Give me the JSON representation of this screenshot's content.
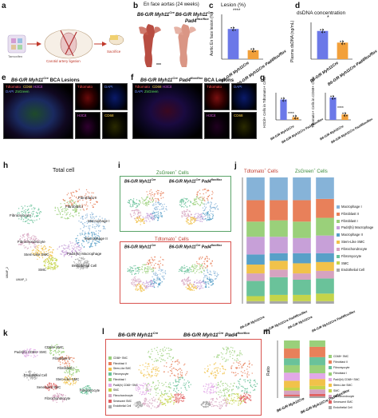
{
  "panels": {
    "a": "a",
    "b": "b",
    "c": "c",
    "d": "d",
    "e": "e",
    "f": "f",
    "g": "g",
    "h": "h",
    "i": "i",
    "j": "j",
    "k": "k",
    "l": "l",
    "m": "m"
  },
  "panel_a": {
    "label_surgery": "Carotid artery ligation",
    "label_step": "Sacrifice",
    "label_left": "Tamoxifen"
  },
  "panel_b": {
    "title": "En face aortas (24 weeks)",
    "group1": "B6-G/R Myh11",
    "group1_sup": "Cre",
    "group2": "B6-G/R Myh11",
    "group2_sup": "Cre",
    "group2_line2": "Pad4",
    "group2_line2_sup": "flox/flox"
  },
  "panel_c": {
    "title": "Lesion (%)",
    "ylabel": "Aortic En face lesion (%)",
    "sig": "****",
    "xticks": [
      "B6-G/R Myh11Cre",
      "B6-G/R Myh11Cre Pad4flox/flox"
    ]
  },
  "panel_d": {
    "title": "dsDNA concentration",
    "ylabel": "Plasma dsDNA (ng/mL)",
    "sig": "*",
    "xticks": [
      "B6-G/R Myh11Cre",
      "B6-G/R Myh11Cre Pad4flox/flox"
    ]
  },
  "panel_e": {
    "title": "B6-G/R Myh11",
    "title_sup": "Cre",
    "title_suffix": "BCA Lesions",
    "main_labels": [
      "Tdtomato",
      "CD68",
      "H3Cit",
      "DAPI",
      "ZsGreen"
    ],
    "tiles": [
      "Tdtomato",
      "DAPI",
      "H3Cit",
      "CD68"
    ]
  },
  "panel_f": {
    "title": "B6-G/R Myh11",
    "title_sup": "Cre",
    "title_mid": "Pad4",
    "title_mid_sup": "flox/flox",
    "title_suffix": "BCA Lesions",
    "main_labels": [
      "Tdtomato",
      "CD68",
      "H3Cit",
      "DAPI",
      "ZsGreen"
    ],
    "tiles": [
      "Tdtomato",
      "DAPI",
      "H3Cit",
      "CD68"
    ]
  },
  "panel_g": {
    "ylabel1": "H3Cit+ Cells in Tdtomato+ Cells",
    "ylabel2": "Tdtomato+ Cells in CD68+ Cells",
    "sig1": "****",
    "sig2": "****",
    "xticks": [
      "B6-G/R Myh11Cre",
      "B6-G/R Myh11Cre Pad4flox/flox"
    ]
  },
  "panel_h": {
    "title": "Total cell",
    "xlabel": "UMAP_1",
    "ylabel": "UMAP_2",
    "clusters": [
      "Fibroblast II",
      "Fibroblast I",
      "Fibromyocyte",
      "Macrophage I",
      "Macrophage II",
      "Fibrochondrocyte",
      "Pad4(hi) Macrophage",
      "Stem-Like SMC",
      "SMC",
      "Endothelial Cell"
    ]
  },
  "panel_i": {
    "title_top": "ZsGreen",
    "title_top_sup": "+",
    "title_top_suffix": " Cells",
    "title_bottom": "Tdtomato",
    "title_bottom_sup": "+",
    "title_bottom_suffix": " Cells",
    "g1": "B6-G/R Myh11",
    "g1_sup": "Cre",
    "g2": "B6-G/R Myh11",
    "g2_sup": "Cre",
    "g2_tail": "Pad4",
    "g2_tail_sup": "flox/flox"
  },
  "panel_j": {
    "title_left": "Tdtomato",
    "title_left_sup": "+",
    "title_left_suffix": " Cells",
    "title_right": "ZsGreen",
    "title_right_sup": "+",
    "title_right_suffix": " Cells",
    "xticks": [
      "B6-G/R Myh11Cre",
      "B6-G/R Myh11Cre Pad4flox/flox",
      "B6-G/R Myh11Cre",
      "B6-G/R Myh11Cre Pad4flox/flox"
    ],
    "legend": [
      "Macrophage I",
      "Fibroblast II",
      "Fibroblast I",
      "Pad4(hi) Macrophage",
      "Macrophage II",
      "Stem-Like SMC",
      "Fibrochondrocyte",
      "Fibromyocyte",
      "SMC",
      "Endothelial Cell"
    ]
  },
  "panel_k": {
    "clusters": [
      "Pad4(hi) CD68+ SMC",
      "CD68+ SMC",
      "Fibroblast II",
      "Fibroblast I",
      "Endothelial Cell",
      "Stem-Like SMC",
      "Senescent SMC",
      "Fibromyocyte",
      "Fibrochondrocyte"
    ]
  },
  "panel_l": {
    "title1": "B6-G/R Myh11",
    "title1_sup": "Cre",
    "title2": "B6-G/R Myh11",
    "title2_sup": "Cre",
    "title2_tail": "Pad4",
    "title2_tail_sup": "flox/flox",
    "legend": [
      "CD68+ SMC",
      "Fibroblast II",
      "Stem-Like SMC",
      "Fibromyocyte",
      "Fibroblast I",
      "Pad4(hi) CD68+ SMC",
      "SMC",
      "Fibrochondrocyte",
      "Senescent SMC",
      "Endothelial Cell"
    ]
  },
  "panel_m": {
    "ylabel": "Ratio",
    "xticks": [
      "B6-G/R Myh11Cre",
      "B6-G/R Myh11Cre Pad4flox/flox"
    ],
    "legend": [
      "CD68+ SMC",
      "Fibroblast II",
      "Fibromyocyte",
      "Fibroblast I",
      "Pad4(hi) CD68+ SMC",
      "Stem-Like SMC",
      "SMC",
      "Fibrochondrocyte",
      "Senescent SMC",
      "Endothelial Cell"
    ]
  },
  "colors": {
    "bar_blue": "#6b78e8",
    "bar_orange": "#f2a03a",
    "red_box": "#d9534f",
    "green_box": "#5aa469"
  },
  "chart_data": [
    {
      "type": "bar",
      "title": "Lesion (%)",
      "ylabel": "Aortic En face lesion (%)",
      "categories": [
        "B6-G/R Myh11Cre",
        "B6-G/R Myh11Cre Pad4flox/flox"
      ],
      "values": [
        27,
        8
      ],
      "ylim": [
        0,
        40
      ]
    },
    {
      "type": "bar",
      "title": "dsDNA concentration",
      "ylabel": "Plasma dsDNA (ng/mL)",
      "categories": [
        "B6-G/R Myh11Cre",
        "B6-G/R Myh11Cre Pad4flox/flox"
      ],
      "values": [
        2300,
        1350
      ],
      "ylim": [
        0,
        3000
      ]
    },
    {
      "type": "bar",
      "ylabel": "H3Cit+ Cells in Tdtomato+ Cells",
      "categories": [
        "B6-G/R Myh11Cre",
        "B6-G/R Myh11Cre Pad4flox/flox"
      ],
      "values": [
        0.3,
        0.04
      ],
      "ylim": [
        0,
        0.4
      ]
    },
    {
      "type": "bar",
      "ylabel": "Tdtomato+ Cells in CD68+ Cells",
      "categories": [
        "B6-G/R Myh11Cre",
        "B6-G/R Myh11Cre Pad4flox/flox"
      ],
      "values": [
        0.33,
        0.08
      ],
      "ylim": [
        0,
        0.4
      ]
    },
    {
      "type": "bar",
      "categories": [
        "B6-G/R Myh11Cre",
        "B6-G/R Myh11Cre Pad4flox/flox",
        "B6-G/R Myh11Cre",
        "B6-G/R Myh11Cre Pad4flox/flox"
      ],
      "series": [
        {
          "name": "Endothelial Cell",
          "values": [
            0.02,
            0.02,
            0.02,
            0.02
          ]
        },
        {
          "name": "SMC",
          "values": [
            0.04,
            0.05,
            0.05,
            0.06
          ]
        },
        {
          "name": "Fibromyocyte",
          "values": [
            0.12,
            0.14,
            0.12,
            0.12
          ]
        },
        {
          "name": "Fibrochondrocyte",
          "values": [
            0.06,
            0.06,
            0.05,
            0.06
          ]
        },
        {
          "name": "Stem-Like SMC",
          "values": [
            0.07,
            0.07,
            0.08,
            0.07
          ]
        },
        {
          "name": "Macrophage II",
          "values": [
            0.08,
            0.06,
            0.08,
            0.07
          ]
        },
        {
          "name": "Pad4(hi) Macrophage",
          "values": [
            0.14,
            0.13,
            0.12,
            0.14
          ]
        },
        {
          "name": "Fibroblast I",
          "values": [
            0.12,
            0.13,
            0.13,
            0.14
          ]
        },
        {
          "name": "Fibroblast II",
          "values": [
            0.17,
            0.16,
            0.17,
            0.15
          ]
        },
        {
          "name": "Macrophage I",
          "values": [
            0.18,
            0.18,
            0.18,
            0.17
          ]
        }
      ],
      "ylim": [
        0,
        1
      ]
    },
    {
      "type": "bar",
      "ylabel": "Ratio",
      "categories": [
        "B6-G/R Myh11Cre",
        "B6-G/R Myh11Cre Pad4flox/flox"
      ],
      "series": [
        {
          "name": "Endothelial Cell",
          "values": [
            0.03,
            0.03
          ]
        },
        {
          "name": "Senescent SMC",
          "values": [
            0.03,
            0.04
          ]
        },
        {
          "name": "Fibrochondrocyte",
          "values": [
            0.07,
            0.08
          ]
        },
        {
          "name": "SMC",
          "values": [
            0.05,
            0.06
          ]
        },
        {
          "name": "Stem-Like SMC",
          "values": [
            0.12,
            0.12
          ]
        },
        {
          "name": "Pad4(hi) CD68+ SMC",
          "values": [
            0.14,
            0.1
          ]
        },
        {
          "name": "Fibroblast I",
          "values": [
            0.13,
            0.14
          ]
        },
        {
          "name": "Fibromyocyte",
          "values": [
            0.12,
            0.14
          ]
        },
        {
          "name": "Fibroblast II",
          "values": [
            0.17,
            0.18
          ]
        },
        {
          "name": "CD68+ SMC",
          "values": [
            0.14,
            0.11
          ]
        }
      ],
      "ylim": [
        0,
        1
      ]
    }
  ]
}
